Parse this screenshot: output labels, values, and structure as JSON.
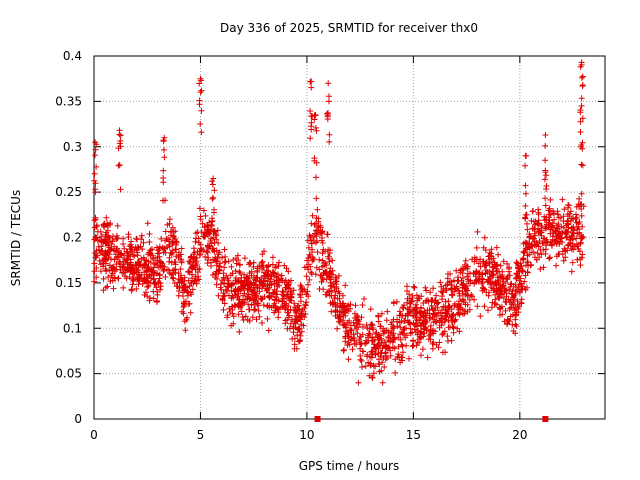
{
  "chart_data": {
    "type": "scatter",
    "title": "Day 336 of 2025, SRMTID for receiver thx0",
    "xlabel": "GPS time / hours",
    "ylabel": "SRMTID / TECUs",
    "xlim": [
      0,
      24
    ],
    "ylim": [
      0,
      0.4
    ],
    "xticks": [
      0,
      5,
      10,
      15,
      20
    ],
    "yticks": [
      0,
      0.05,
      0.1,
      0.15,
      0.2,
      0.25,
      0.3,
      0.35,
      0.4
    ],
    "xtick_labels": [
      "0",
      "5",
      "10",
      "15",
      "20"
    ],
    "ytick_labels": [
      "0",
      "0.05",
      "0.1",
      "0.15",
      "0.2",
      "0.25",
      "0.3",
      "0.35",
      "0.4"
    ],
    "grid": true,
    "marker": "plus",
    "series_color": "#e00000",
    "trend_profile": [
      [
        0.0,
        0.19
      ],
      [
        1.0,
        0.175
      ],
      [
        2.0,
        0.17
      ],
      [
        3.0,
        0.16
      ],
      [
        3.6,
        0.2
      ],
      [
        4.3,
        0.13
      ],
      [
        5.0,
        0.2
      ],
      [
        5.5,
        0.2
      ],
      [
        6.2,
        0.14
      ],
      [
        7.0,
        0.14
      ],
      [
        8.0,
        0.15
      ],
      [
        9.0,
        0.14
      ],
      [
        9.6,
        0.1
      ],
      [
        10.3,
        0.2
      ],
      [
        10.6,
        0.19
      ],
      [
        11.3,
        0.14
      ],
      [
        12.0,
        0.1
      ],
      [
        13.0,
        0.08
      ],
      [
        14.0,
        0.09
      ],
      [
        15.0,
        0.11
      ],
      [
        16.0,
        0.11
      ],
      [
        17.0,
        0.13
      ],
      [
        18.0,
        0.16
      ],
      [
        19.0,
        0.15
      ],
      [
        19.8,
        0.13
      ],
      [
        20.5,
        0.2
      ],
      [
        21.5,
        0.21
      ],
      [
        22.2,
        0.2
      ],
      [
        23.0,
        0.21
      ]
    ],
    "peaks": [
      {
        "x": 0.05,
        "y": 0.305
      },
      {
        "x": 1.2,
        "y": 0.318
      },
      {
        "x": 3.3,
        "y": 0.31
      },
      {
        "x": 5.0,
        "y": 0.375
      },
      {
        "x": 5.6,
        "y": 0.265
      },
      {
        "x": 10.2,
        "y": 0.372
      },
      {
        "x": 10.4,
        "y": 0.335
      },
      {
        "x": 11.0,
        "y": 0.37
      },
      {
        "x": 20.3,
        "y": 0.29
      },
      {
        "x": 21.2,
        "y": 0.313
      },
      {
        "x": 22.9,
        "y": 0.393
      },
      {
        "x": 22.9,
        "y": 0.345
      }
    ],
    "zero_markers": [
      {
        "x": 10.5,
        "y": 0
      },
      {
        "x": 21.2,
        "y": 0
      }
    ],
    "point_count": 2400,
    "end_hour": 23.0
  }
}
